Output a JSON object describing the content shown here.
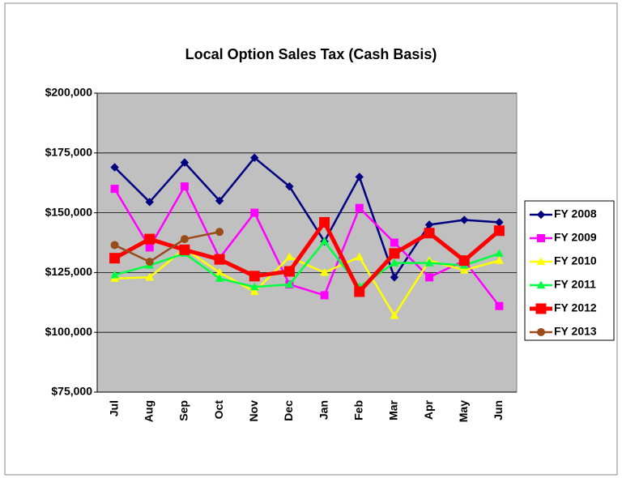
{
  "chart_data": {
    "type": "line",
    "title": "Local Option Sales Tax (Cash Basis)",
    "categories": [
      "Jul",
      "Aug",
      "Sep",
      "Oct",
      "Nov",
      "Dec",
      "Jan",
      "Feb",
      "Mar",
      "Apr",
      "May",
      "Jun"
    ],
    "ylim": [
      75000,
      200000
    ],
    "yticks": [
      {
        "value": 75000,
        "label": "$75,000"
      },
      {
        "value": 100000,
        "label": "$100,000"
      },
      {
        "value": 125000,
        "label": "$125,000"
      },
      {
        "value": 150000,
        "label": "$150,000"
      },
      {
        "value": 175000,
        "label": "$175,000"
      },
      {
        "value": 200000,
        "label": "$200,000"
      }
    ],
    "grid": true,
    "legend": "right",
    "series": [
      {
        "name": "FY 2008",
        "color": "#000080",
        "marker": "diamond",
        "line_width": 2.5,
        "values": [
          169000,
          154500,
          171000,
          155000,
          173000,
          161000,
          138000,
          165000,
          123000,
          145000,
          147000,
          146000
        ]
      },
      {
        "name": "FY 2009",
        "color": "#ff00ff",
        "marker": "square",
        "line_width": 2.5,
        "values": [
          160000,
          135500,
          161000,
          131000,
          150000,
          120000,
          115500,
          152000,
          137500,
          123000,
          130000,
          111000
        ]
      },
      {
        "name": "FY 2010",
        "color": "#ffff00",
        "marker": "triangle",
        "line_width": 2.5,
        "values": [
          122500,
          123000,
          135000,
          125000,
          117000,
          131500,
          125000,
          131500,
          107000,
          130000,
          126000,
          130000
        ]
      },
      {
        "name": "FY 2011",
        "color": "#00ff40",
        "marker": "triangle",
        "line_width": 2.5,
        "values": [
          124000,
          128000,
          133000,
          122500,
          119000,
          120000,
          138000,
          119000,
          129000,
          129000,
          128000,
          133000
        ]
      },
      {
        "name": "FY 2012",
        "color": "#ff0000",
        "marker": "square",
        "line_width": 5,
        "values": [
          131000,
          139000,
          134500,
          130500,
          123500,
          125500,
          146000,
          117000,
          133000,
          141500,
          130000,
          142500
        ]
      },
      {
        "name": "FY 2013",
        "color": "#994c1a",
        "marker": "circle",
        "line_width": 2.5,
        "values": [
          136500,
          129500,
          139000,
          142000,
          null,
          null,
          null,
          null,
          null,
          null,
          null,
          null
        ]
      }
    ]
  }
}
